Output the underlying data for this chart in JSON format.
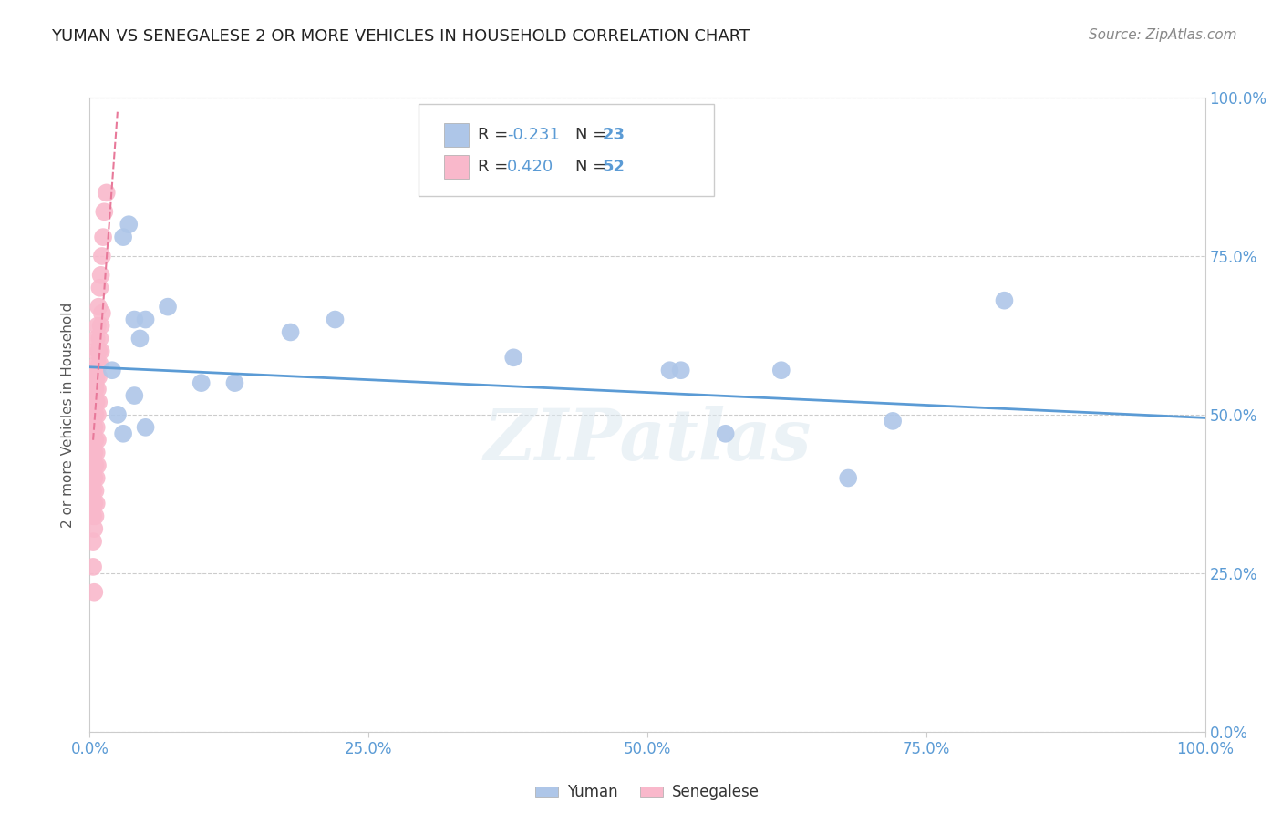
{
  "title": "YUMAN VS SENEGALESE 2 OR MORE VEHICLES IN HOUSEHOLD CORRELATION CHART",
  "source": "Source: ZipAtlas.com",
  "ylabel": "2 or more Vehicles in Household",
  "yuman_R": -0.231,
  "yuman_N": 23,
  "senegalese_R": 0.42,
  "senegalese_N": 52,
  "xlim": [
    0.0,
    1.0
  ],
  "ylim": [
    0.0,
    1.0
  ],
  "tick_vals": [
    0.0,
    0.25,
    0.5,
    0.75,
    1.0
  ],
  "tick_labels": [
    "0.0%",
    "25.0%",
    "50.0%",
    "75.0%",
    "100.0%"
  ],
  "yuman_color": "#aec6e8",
  "senegalese_color": "#f9b8cb",
  "yuman_line_color": "#5b9bd5",
  "senegalese_line_color": "#e8799a",
  "watermark": "ZIPatlas",
  "yuman_x": [
    0.02,
    0.03,
    0.035,
    0.04,
    0.045,
    0.05,
    0.07,
    0.1,
    0.13,
    0.18,
    0.22,
    0.38,
    0.52,
    0.53,
    0.57,
    0.62,
    0.68,
    0.72,
    0.82,
    0.025,
    0.03,
    0.04,
    0.05
  ],
  "yuman_y": [
    0.57,
    0.78,
    0.8,
    0.65,
    0.62,
    0.65,
    0.67,
    0.55,
    0.55,
    0.63,
    0.65,
    0.59,
    0.57,
    0.57,
    0.47,
    0.57,
    0.4,
    0.49,
    0.68,
    0.5,
    0.47,
    0.53,
    0.48
  ],
  "senegalese_x": [
    0.003,
    0.005,
    0.005,
    0.006,
    0.007,
    0.008,
    0.009,
    0.01,
    0.011,
    0.012,
    0.013,
    0.015,
    0.003,
    0.004,
    0.005,
    0.006,
    0.007,
    0.008,
    0.009,
    0.01,
    0.011,
    0.003,
    0.004,
    0.005,
    0.006,
    0.007,
    0.008,
    0.009,
    0.01,
    0.003,
    0.004,
    0.005,
    0.006,
    0.007,
    0.008,
    0.003,
    0.004,
    0.005,
    0.006,
    0.007,
    0.003,
    0.004,
    0.005,
    0.006,
    0.007,
    0.003,
    0.004,
    0.005,
    0.006,
    0.003,
    0.004,
    0.005
  ],
  "senegalese_y": [
    0.55,
    0.57,
    0.6,
    0.62,
    0.64,
    0.67,
    0.7,
    0.72,
    0.75,
    0.78,
    0.82,
    0.85,
    0.5,
    0.52,
    0.54,
    0.56,
    0.58,
    0.6,
    0.62,
    0.64,
    0.66,
    0.46,
    0.48,
    0.5,
    0.52,
    0.54,
    0.56,
    0.58,
    0.6,
    0.42,
    0.44,
    0.46,
    0.48,
    0.5,
    0.52,
    0.38,
    0.4,
    0.42,
    0.44,
    0.46,
    0.34,
    0.36,
    0.38,
    0.4,
    0.42,
    0.3,
    0.32,
    0.34,
    0.36,
    0.26,
    0.22,
    0.55
  ],
  "yuman_line_x": [
    0.0,
    1.0
  ],
  "yuman_line_y": [
    0.575,
    0.495
  ],
  "senegalese_line_x_start": 0.003,
  "senegalese_line_x_end": 0.025,
  "senegalese_line_y_start": 0.46,
  "senegalese_line_y_end": 0.98
}
